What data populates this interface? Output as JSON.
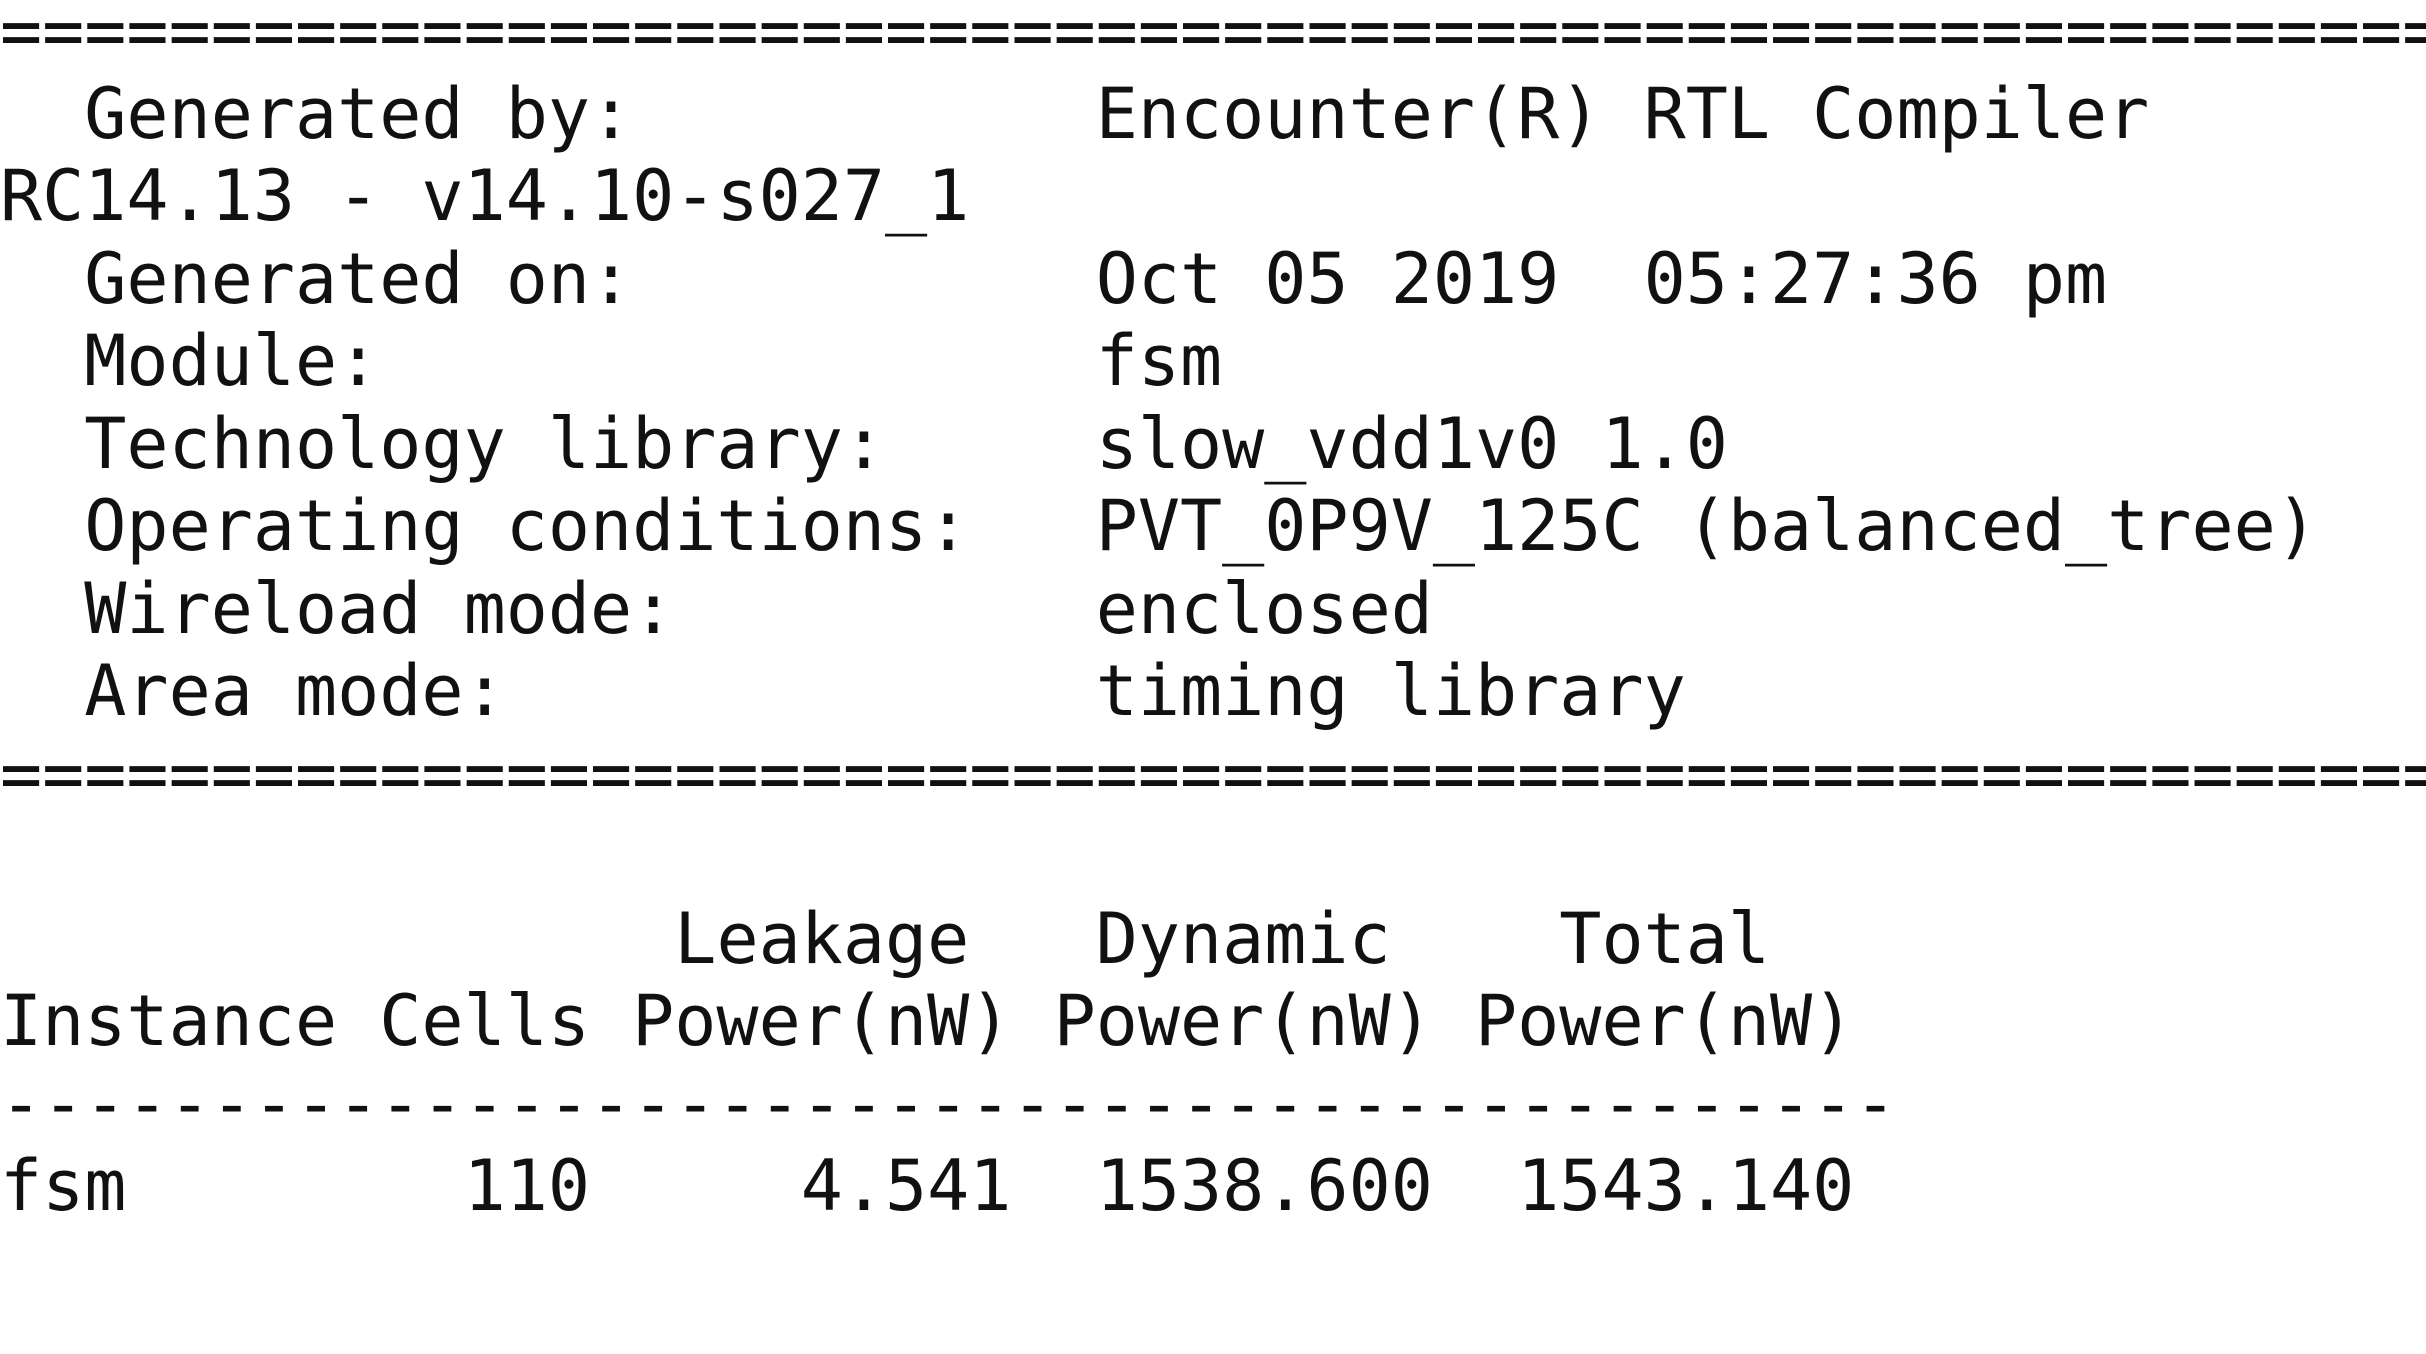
{
  "report": {
    "separator": "============================================================",
    "fields": [
      {
        "label": "Generated by:",
        "value": "Encounter(R) RTL Compiler RC14.13 - v14.10-s027_1"
      },
      {
        "label": "Generated on:",
        "value": "Oct 05 2019  05:27:36 pm"
      },
      {
        "label": "Module:",
        "value": "fsm"
      },
      {
        "label": "Technology library:",
        "value": "slow_vdd1v0 1.0"
      },
      {
        "label": "Operating conditions:",
        "value": "PVT_0P9V_125C (balanced_tree)"
      },
      {
        "label": "Wireload mode:",
        "value": "enclosed"
      },
      {
        "label": "Area mode:",
        "value": "timing library"
      }
    ],
    "table": {
      "header_top": [
        "Leakage",
        "Dynamic",
        "Total"
      ],
      "columns": [
        "Instance",
        "Cells",
        "Power(nW)",
        "Power(nW)",
        "Power(nW)"
      ],
      "rule": "---------------------------------------------",
      "rows": [
        [
          "fsm",
          "110",
          "4.541",
          "1538.600",
          "1543.140"
        ]
      ]
    }
  }
}
